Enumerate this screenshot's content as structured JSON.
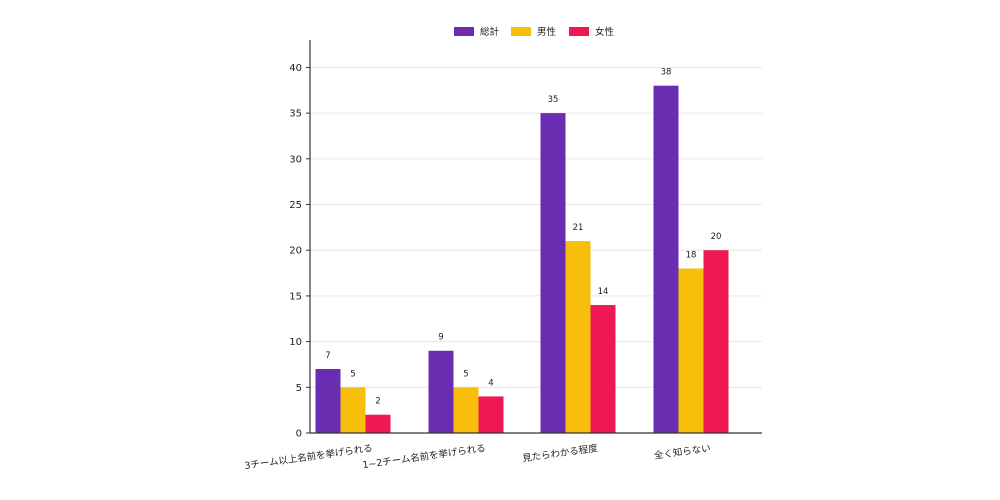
{
  "chart_data": {
    "type": "bar",
    "categories": [
      "3チーム以上名前を挙げられる",
      "1~2チーム名前を挙げられる",
      "見たらわかる程度",
      "全く知らない"
    ],
    "series": [
      {
        "name": "総計",
        "values": [
          7,
          9,
          35,
          38
        ],
        "color": "#6a2cb0"
      },
      {
        "name": "男性",
        "values": [
          5,
          5,
          21,
          18
        ],
        "color": "#f7bf0b"
      },
      {
        "name": "女性",
        "values": [
          2,
          4,
          14,
          20
        ],
        "color": "#ee1852"
      }
    ],
    "ylim": [
      0,
      43
    ],
    "yticks": [
      0,
      5,
      10,
      15,
      20,
      25,
      30,
      35,
      40
    ],
    "title": "",
    "xlabel": "",
    "ylabel": "",
    "grid": true,
    "legend_position": "top-center"
  }
}
